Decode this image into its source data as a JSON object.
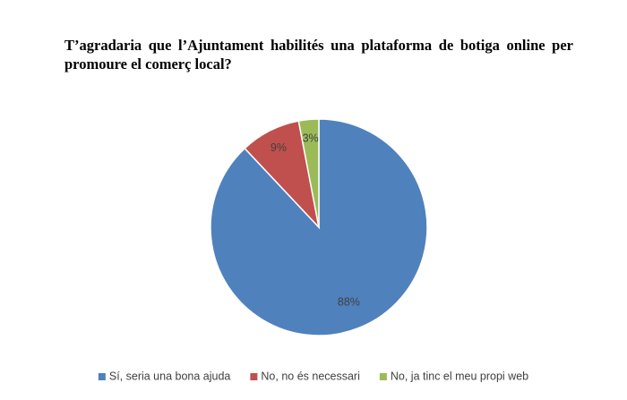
{
  "chart_data": {
    "type": "pie",
    "title": "T’agradaria que l’Ajuntament habilités una plataforma de botiga online per promoure el comerç local?",
    "categories": [
      "Sí, seria una bona ajuda",
      "No, no és necessari",
      "No, ja tinc el meu propi web"
    ],
    "values": [
      88,
      9,
      3
    ],
    "value_labels": [
      "88%",
      "9%",
      "3%"
    ],
    "colors": [
      "#4f81bd",
      "#c0504d",
      "#9bbb59"
    ],
    "legend": "bottom"
  }
}
